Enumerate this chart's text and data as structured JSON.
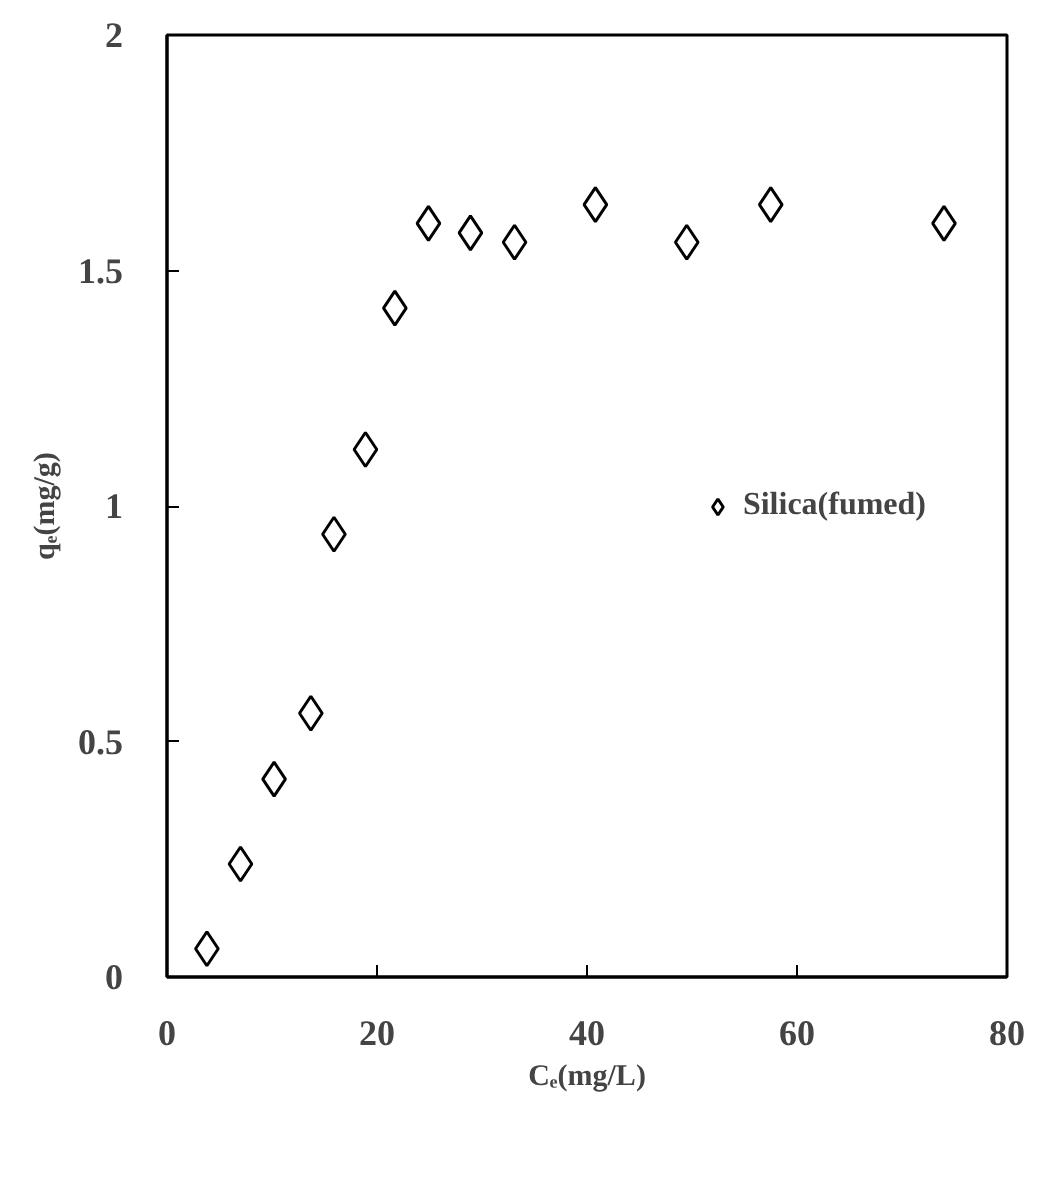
{
  "chart_data": {
    "type": "scatter",
    "xlabel": "Cₑ(mg/L)",
    "ylabel": "qₑ(mg/g)",
    "x": [
      3.8,
      7.0,
      10.2,
      13.7,
      15.9,
      18.9,
      21.7,
      24.9,
      28.9,
      33.1,
      40.8,
      49.5,
      57.5,
      74.0
    ],
    "series": [
      {
        "name": "Silica(fumed)",
        "color": "#000000",
        "values": [
          0.06,
          0.24,
          0.42,
          0.56,
          0.94,
          1.12,
          1.42,
          1.6,
          1.58,
          1.56,
          1.64,
          1.56,
          1.64,
          1.6
        ]
      }
    ],
    "xlim": [
      0,
      80
    ],
    "xticks": [
      0,
      20,
      40,
      60,
      80
    ],
    "ylim": [
      0,
      2
    ],
    "yticks": [
      0,
      {
        "value": 0.5,
        "label": "0.5"
      },
      1,
      {
        "value": 1.5,
        "label": "1.5"
      },
      2
    ],
    "marker": "diamond",
    "grid": false,
    "legend": "right"
  }
}
